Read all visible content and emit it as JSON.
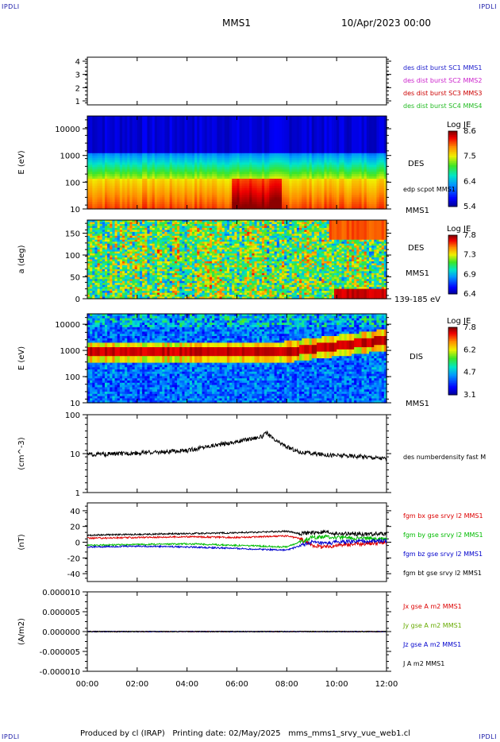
{
  "header": {
    "corner_tl": "IPDLI",
    "corner_tr": "IPDLI",
    "corner_bl": "IPDLI",
    "corner_br": "IPDLI",
    "spacecraft": "MMS1",
    "date": "10/Apr/2023 00:00"
  },
  "footer": {
    "text": "Produced by cl (IRAP)   Printing date: 02/May/2025   mms_mms1_srvy_vue_web1.cl"
  },
  "chart_data": {
    "type": "multi-panel time series",
    "x": {
      "ticks": [
        "00:00",
        "02:00",
        "04:00",
        "06:00",
        "08:00",
        "10:00",
        "12:00"
      ],
      "range_hours": [
        0,
        12
      ]
    },
    "panels": [
      {
        "id": "spacecraft-bursts",
        "type": "line",
        "ylabel": "",
        "ylim": [
          0.7,
          4.3
        ],
        "yticks": [
          "4",
          "3",
          "2",
          "1"
        ],
        "ytick_values": [
          4,
          3,
          2,
          1
        ],
        "legend": [
          {
            "label": "des dist burst SC1 MMS1",
            "color": "#1a1acc"
          },
          {
            "label": "des dist burst SC2 MMS2",
            "color": "#cc22cc"
          },
          {
            "label": "des dist burst SC3 MMS3",
            "color": "#cc0000"
          },
          {
            "label": "des dist burst SC4 MMS4",
            "color": "#22bb22"
          }
        ]
      },
      {
        "id": "des-energy-spectrogram",
        "type": "heatmap",
        "ylabel": "E (eV)",
        "scale": "log",
        "ylim": [
          10,
          30000
        ],
        "yticks": [
          "10000",
          "1000",
          "100",
          "10"
        ],
        "ytick_values": [
          10000,
          1000,
          100,
          10
        ],
        "labels": [
          "DES",
          "MMS1"
        ],
        "overlay_label": "edp scpot MMS1",
        "colorbar": {
          "title": "Log JE",
          "ticks": [
            "8.6",
            "7.5",
            "6.4",
            "5.4"
          ],
          "range": [
            5.4,
            8.6
          ]
        }
      },
      {
        "id": "des-pitch-angle",
        "type": "heatmap",
        "ylabel": "a (deg)",
        "ylim": [
          0,
          180
        ],
        "yticks": [
          "150",
          "100",
          "50",
          "0"
        ],
        "ytick_values": [
          150,
          100,
          50,
          0
        ],
        "labels": [
          "DES",
          "MMS1",
          "139-185 eV"
        ],
        "colorbar": {
          "title": "Log JE",
          "ticks": [
            "7.8",
            "7.3",
            "6.9",
            "6.4"
          ],
          "range": [
            6.4,
            7.8
          ]
        }
      },
      {
        "id": "dis-energy-spectrogram",
        "type": "heatmap",
        "ylabel": "E (eV)",
        "scale": "log",
        "ylim": [
          10,
          25000
        ],
        "yticks": [
          "10000",
          "1000",
          "100",
          "10"
        ],
        "ytick_values": [
          10000,
          1000,
          100,
          10
        ],
        "labels": [
          "DIS",
          "MMS1"
        ],
        "colorbar": {
          "title": "Log JE",
          "ticks": [
            "7.8",
            "6.2",
            "4.7",
            "3.1"
          ],
          "range": [
            3.1,
            7.8
          ]
        }
      },
      {
        "id": "electron-density",
        "type": "line",
        "ylabel": "(cm^-3)",
        "scale": "log",
        "ylim": [
          1,
          100
        ],
        "yticks": [
          "100",
          "10",
          "1"
        ],
        "ytick_values": [
          100,
          10,
          1
        ],
        "series": [
          {
            "name": "des numberdensity fast M",
            "color": "#000000",
            "x": [
              0,
              1,
              2,
              3,
              4,
              4.5,
              5,
              5.5,
              6,
              6.5,
              7,
              7.2,
              7.5,
              8,
              8.5,
              9,
              9.5,
              10,
              10.5,
              11,
              11.5,
              12
            ],
            "values": [
              9.5,
              9.8,
              10.5,
              11,
              12,
              14,
              16,
              18,
              20,
              24,
              27,
              34,
              22,
              15,
              11,
              10,
              9.5,
              9,
              8.8,
              8.5,
              8,
              7.5
            ]
          }
        ]
      },
      {
        "id": "magnetic-field",
        "type": "line",
        "ylabel": "(nT)",
        "ylim": [
          -50,
          50
        ],
        "yticks": [
          "40",
          "20",
          "0",
          "-20",
          "-40"
        ],
        "ytick_values": [
          40,
          20,
          0,
          -20,
          -40
        ],
        "series": [
          {
            "name": "fgm bx gse srvy l2 MMS1",
            "color": "#dd0000",
            "x": [
              0,
              2,
              4,
              6,
              7,
              8,
              8.5,
              9,
              9.5,
              10,
              11,
              12
            ],
            "values": [
              5,
              6,
              7,
              6,
              7,
              8,
              5,
              -4,
              -6,
              -4,
              -2,
              0
            ]
          },
          {
            "name": "fgm by gse srvy l2 MMS1",
            "color": "#00bb00",
            "x": [
              0,
              2,
              4,
              6,
              7,
              8,
              8.5,
              9,
              9.5,
              10,
              11,
              12
            ],
            "values": [
              -4,
              -3,
              -2,
              -4,
              -5,
              -6,
              0,
              6,
              7,
              6,
              5,
              4
            ]
          },
          {
            "name": "fgm bz gse srvy l2 MMS1",
            "color": "#0000cc",
            "x": [
              0,
              2,
              4,
              6,
              7,
              8,
              8.5,
              9,
              9.5,
              10,
              11,
              12
            ],
            "values": [
              -6,
              -5,
              -6,
              -8,
              -9,
              -10,
              -5,
              0,
              -2,
              0,
              1,
              2
            ]
          },
          {
            "name": "fgm bt gse srvy l2 MMS1",
            "color": "#000000",
            "x": [
              0,
              2,
              4,
              6,
              7,
              8,
              8.5,
              9,
              9.5,
              10,
              11,
              12
            ],
            "values": [
              9,
              10,
              11,
              12,
              13,
              14,
              11,
              12,
              13,
              11,
              10,
              11
            ]
          }
        ]
      },
      {
        "id": "current-density",
        "type": "line",
        "ylabel": "(A/m2)",
        "ylim": [
          -1e-05,
          1e-05
        ],
        "yticks": [
          "0.000010",
          "0.000005",
          "0.000000",
          "-0.000005",
          "-0.000010"
        ],
        "ytick_values": [
          1e-05,
          5e-06,
          0,
          -5e-06,
          -1e-05
        ],
        "series": [
          {
            "name": "Jx gse A m2 MMS1",
            "color": "#dd0000",
            "x": [
              0,
              12
            ],
            "values": [
              0,
              0
            ]
          },
          {
            "name": "Jy gse A m2 MMS1",
            "color": "#66aa00",
            "x": [
              0,
              12
            ],
            "values": [
              0,
              0
            ]
          },
          {
            "name": "Jz gse A m2 MMS1",
            "color": "#0000cc",
            "x": [
              0,
              12
            ],
            "values": [
              0,
              0
            ]
          },
          {
            "name": "J A m2 MMS1",
            "color": "#000000",
            "x": [
              0,
              12
            ],
            "values": [
              0,
              0
            ]
          }
        ]
      }
    ]
  }
}
